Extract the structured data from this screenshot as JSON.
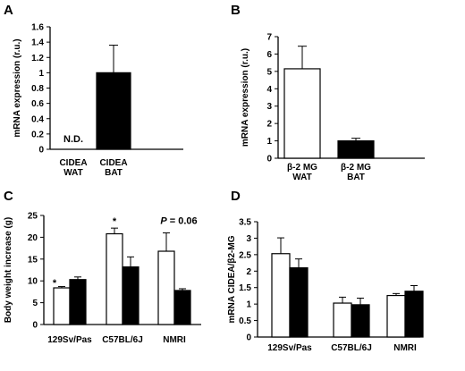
{
  "figure": {
    "panels": [
      {
        "letter": "A",
        "chart_index": 0
      },
      {
        "letter": "B",
        "chart_index": 1
      },
      {
        "letter": "C",
        "chart_index": 2
      },
      {
        "letter": "D",
        "chart_index": 3
      }
    ]
  },
  "colors": {
    "open_bar": "#ffffff",
    "filled_bar": "#000000",
    "axis": "#000000"
  },
  "chart_data": [
    {
      "type": "bar",
      "ylabel": "mRNA expression (r.u.)",
      "ylim": [
        0,
        1.6
      ],
      "yticks": [
        "0",
        "0.2",
        "0.4",
        "0.6",
        "0.8",
        "1",
        "1.2",
        "1.4",
        "1.6"
      ],
      "categories": [
        "CIDEA WAT",
        "CIDEA BAT"
      ],
      "category_lines": [
        [
          "CIDEA",
          "WAT"
        ],
        [
          "CIDEA",
          "BAT"
        ]
      ],
      "series": [
        {
          "fill": "filled",
          "values": [
            null,
            1.0
          ],
          "errors": [
            null,
            0.36
          ]
        }
      ],
      "annotations": [
        {
          "text": "N.D.",
          "category": 0
        }
      ],
      "grid": false
    },
    {
      "type": "bar",
      "ylabel": "mRNA expression (r.u.)",
      "ylim": [
        0,
        7
      ],
      "yticks": [
        "0",
        "1",
        "2",
        "3",
        "4",
        "5",
        "6",
        "7"
      ],
      "categories": [
        "β-2 MG WAT",
        "β-2 MG BAT"
      ],
      "category_lines": [
        [
          "β-2 MG",
          "WAT"
        ],
        [
          "β-2 MG",
          "BAT"
        ]
      ],
      "series": [
        {
          "fill": "per-category",
          "fills": [
            "open",
            "filled"
          ],
          "values": [
            5.15,
            1.0
          ],
          "errors": [
            1.3,
            0.15
          ]
        }
      ],
      "grid": false
    },
    {
      "type": "bar",
      "ylabel": "Body weight increase (g)",
      "ylim": [
        0,
        25
      ],
      "yticks": [
        "0",
        "5",
        "10",
        "15",
        "20",
        "25"
      ],
      "categories": [
        "129Sv/Pas",
        "C57BL/6J",
        "NMRI"
      ],
      "series": [
        {
          "fill": "open",
          "values": [
            8.4,
            20.8,
            16.8
          ],
          "errors": [
            0.3,
            1.3,
            4.2
          ]
        },
        {
          "fill": "filled",
          "values": [
            10.3,
            13.2,
            7.8
          ],
          "errors": [
            0.6,
            2.3,
            0.4
          ]
        }
      ],
      "annotations": [
        {
          "text": "*",
          "category": 0
        },
        {
          "text": "*",
          "category": 1
        },
        {
          "text_italic": "P",
          "text_rest": " = 0.06",
          "category": 2
        }
      ],
      "grid": false
    },
    {
      "type": "bar",
      "ylabel": "mRNA CIDEA/β2-MG",
      "ylim": [
        0,
        3.5
      ],
      "yticks": [
        "0",
        "0.5",
        "1",
        "1.5",
        "2",
        "2.5",
        "3",
        "3.5"
      ],
      "categories": [
        "129Sv/Pas",
        "C57BL/6J",
        "NMRI"
      ],
      "series": [
        {
          "fill": "open",
          "values": [
            2.53,
            1.03,
            1.26
          ],
          "errors": [
            0.48,
            0.18,
            0.06
          ]
        },
        {
          "fill": "filled",
          "values": [
            2.1,
            0.98,
            1.39
          ],
          "errors": [
            0.27,
            0.2,
            0.17
          ]
        }
      ],
      "grid": false
    }
  ]
}
